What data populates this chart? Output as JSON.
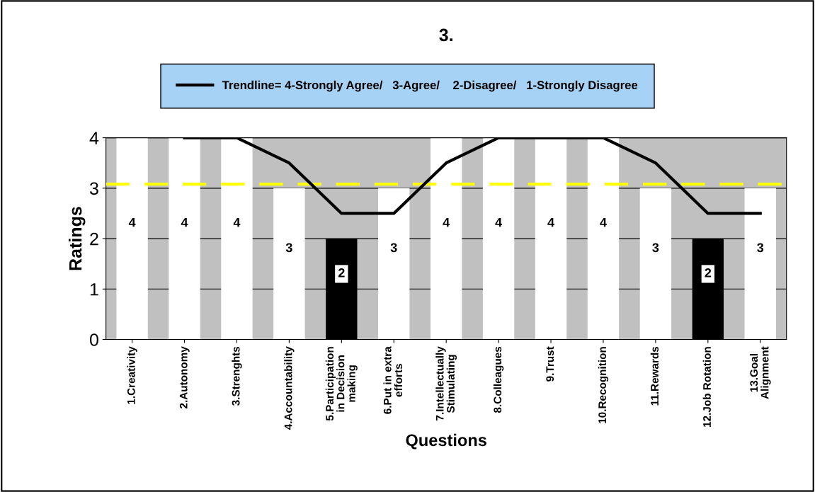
{
  "chart_data": {
    "type": "bar",
    "title": "3.",
    "xlabel": "Questions",
    "ylabel": "Ratings",
    "categories": [
      "1.Creativity",
      "2.Autonomy",
      "3.Strenghts",
      "4.Accountability",
      "5.Participation\nin Decision\nmaking",
      "6.Put in extra\nefforts",
      "7.Intellectually\nStimulating",
      "8.Colleagues",
      "9.Trust",
      "10.Recognition",
      "11.Rewards",
      "12.Job Rotation",
      "13.Goal\nAlignment"
    ],
    "series": [
      {
        "values": [
          4,
          4,
          4,
          3,
          2,
          3,
          4,
          4,
          4,
          4,
          3,
          2,
          3
        ],
        "value_labels": [
          "4",
          "4",
          "4",
          "3",
          "2",
          "3",
          "4",
          "4",
          "4",
          "4",
          "3",
          "2",
          "3"
        ],
        "colors": [
          "#ffffff",
          "#ffffff",
          "#ffffff",
          "#ffffff",
          "#000000",
          "#ffffff",
          "#ffffff",
          "#ffffff",
          "#ffffff",
          "#ffffff",
          "#ffffff",
          "#000000",
          "#ffffff"
        ]
      },
      {
        "type": "line",
        "name": "Trendline= 4-Strongly Agree/   3-Agree/    2-Disagree/   1-Strongly Disagree",
        "color": "#000000",
        "values": [
          null,
          4,
          4,
          3.5,
          2.5,
          2.5,
          3.5,
          4,
          4,
          4,
          3.5,
          2.5,
          2.5
        ]
      }
    ],
    "ylim": [
      0,
      4
    ],
    "yticks": [
      0,
      1,
      2,
      3,
      4
    ],
    "grid": "y",
    "legend": "top",
    "ref_lines": [
      {
        "axis": "y",
        "value": 3.08,
        "color": "#ffff00",
        "line_style": "dashed"
      }
    ]
  }
}
